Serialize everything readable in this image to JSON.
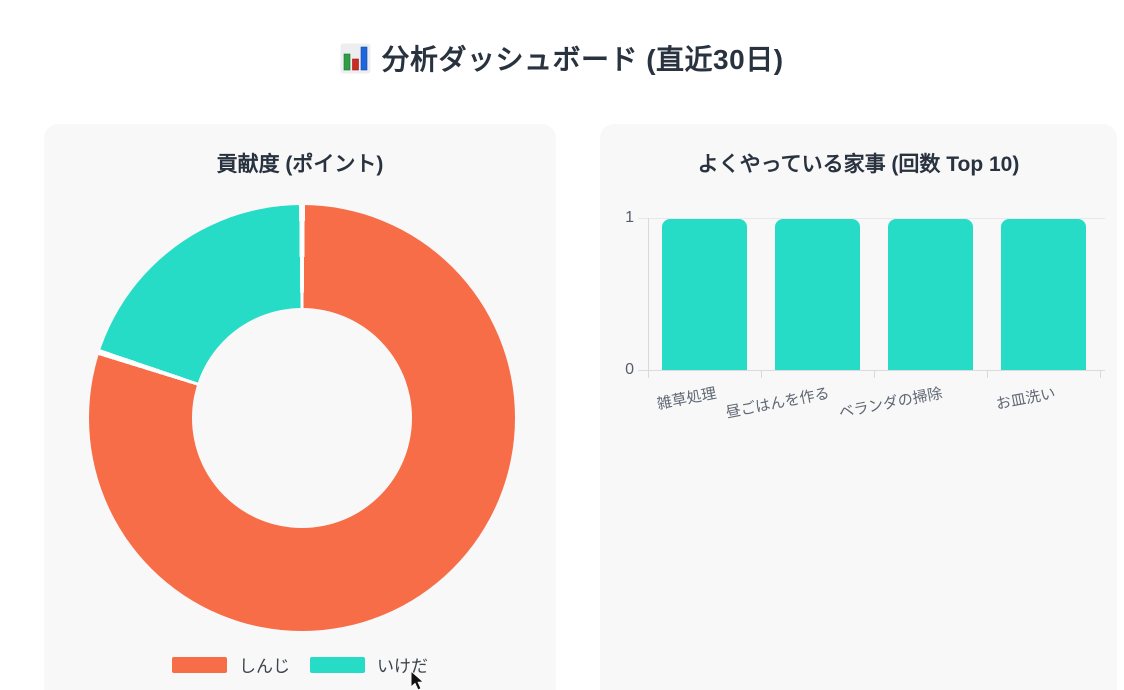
{
  "page": {
    "title": "分析ダッシュボード (直近30日)",
    "title_icon": "bar-chart-icon"
  },
  "colors": {
    "orange": "#f76d48",
    "teal": "#26dcc7",
    "panel_bg": "#f8f8f9",
    "heading_text": "#29323f",
    "axis_text": "#565e6b",
    "gridline": "#e8e8ea",
    "slice_border": "#ffffff"
  },
  "chart_data": [
    {
      "type": "pie",
      "donut": true,
      "title": "貢献度 (ポイント)",
      "labels": [
        "しんじ",
        "いけだ"
      ],
      "values": [
        4,
        1
      ],
      "percentages": [
        80,
        20
      ],
      "colors": [
        "#f76d48",
        "#26dcc7"
      ],
      "start_angle_deg": 0,
      "direction": "clockwise",
      "legend_position": "bottom"
    },
    {
      "type": "bar",
      "title": "よくやっている家事 (回数 Top 10)",
      "categories": [
        "雑草処理",
        "昼ごはんを作る",
        "ベランダの掃除",
        "お皿洗い"
      ],
      "values": [
        1,
        1,
        1,
        1
      ],
      "bar_color": "#26dcc7",
      "ylim": [
        0,
        1
      ],
      "yticks": [
        "0",
        "1"
      ],
      "grid": true,
      "xlabel": "",
      "ylabel": ""
    }
  ]
}
